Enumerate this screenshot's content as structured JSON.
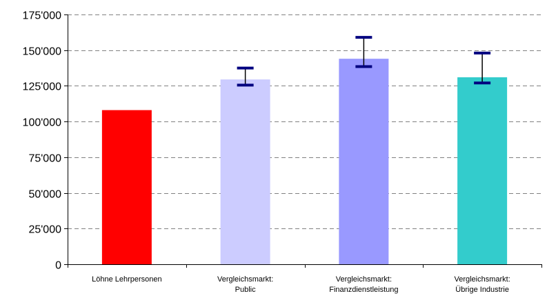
{
  "chart_data": {
    "type": "bar",
    "categories": [
      [
        "Löhne Lehrpersonen"
      ],
      [
        "Vergleichsmarkt:",
        "Public"
      ],
      [
        "Vergleichsmarkt:",
        "Finanzdienstleistung"
      ],
      [
        "Vergleichsmarkt:",
        "Übrige Industrie"
      ]
    ],
    "values": [
      108000,
      129500,
      144000,
      131000
    ],
    "error_low": [
      null,
      125500,
      138500,
      127000
    ],
    "error_high": [
      null,
      137500,
      159000,
      148000
    ],
    "bar_colors": [
      "#ff0000",
      "#ccccff",
      "#9999ff",
      "#33cccc"
    ],
    "error_color": "#000080",
    "ylim": [
      0,
      175000
    ],
    "yticks": [
      0,
      25000,
      50000,
      75000,
      100000,
      125000,
      150000,
      175000
    ],
    "ytick_labels": [
      "0",
      "25'000",
      "50'000",
      "75'000",
      "100'000",
      "125'000",
      "150'000",
      "175'000"
    ],
    "grid": true,
    "title": "",
    "xlabel": "",
    "ylabel": ""
  }
}
